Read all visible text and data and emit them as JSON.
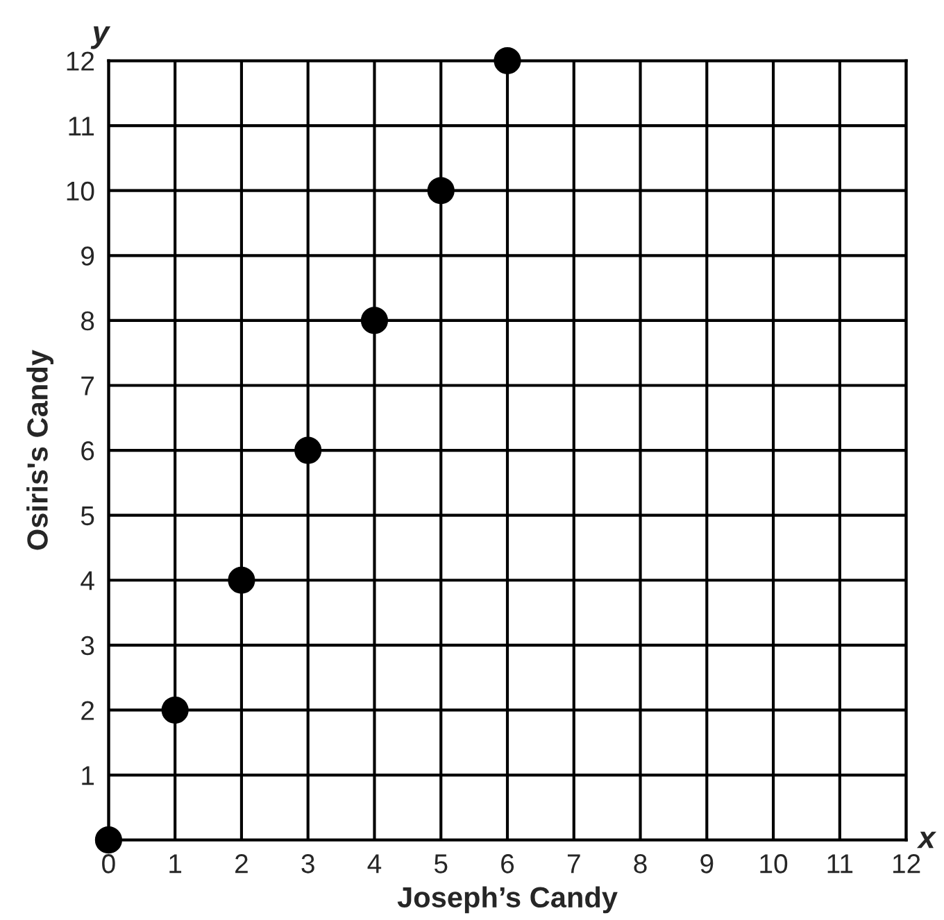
{
  "chart_data": {
    "type": "scatter",
    "xlabel": "Joseph’s Candy",
    "ylabel": "Osiris's Candy",
    "x": [
      0,
      1,
      2,
      3,
      4,
      5,
      6
    ],
    "series": [
      {
        "color": "#000000",
        "values": [
          0,
          2,
          4,
          6,
          8,
          10,
          12
        ]
      }
    ],
    "xlim": [
      0,
      12
    ],
    "ylim": [
      0,
      12
    ],
    "xticks": [
      0,
      1,
      2,
      3,
      4,
      5,
      6,
      7,
      8,
      9,
      10,
      11,
      12
    ],
    "yticks": [
      1,
      2,
      3,
      4,
      5,
      6,
      7,
      8,
      9,
      10,
      11,
      12
    ],
    "grid": true,
    "marker": "circle",
    "legend": false,
    "annotations": [
      "x",
      "y"
    ]
  }
}
